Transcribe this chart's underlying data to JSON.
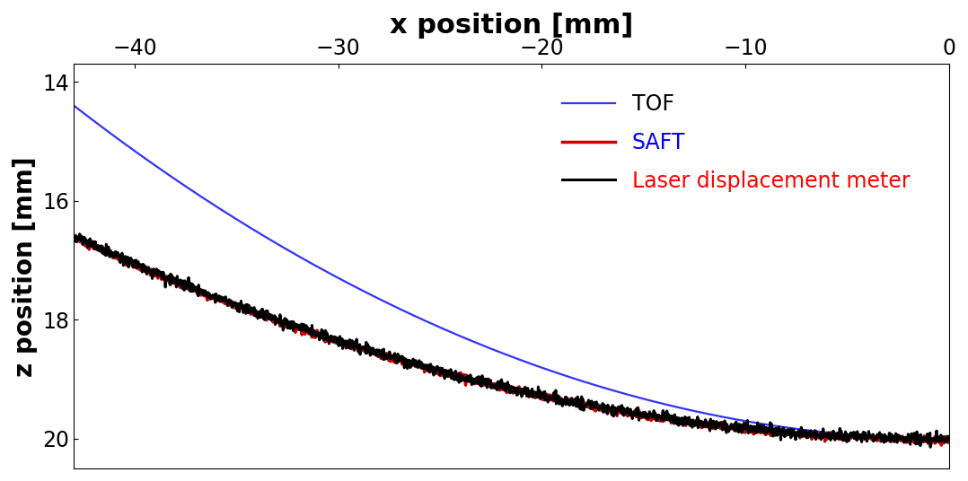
{
  "title": "x position [mm]",
  "ylabel": "z position [mm]",
  "xlim": [
    -43,
    0
  ],
  "ylim": [
    20.5,
    13.7
  ],
  "xticks": [
    -40,
    -30,
    -20,
    -10,
    0
  ],
  "yticks": [
    14,
    16,
    18,
    20
  ],
  "legend": [
    {
      "label": "Laser displacement meter",
      "color": "#000000",
      "lw": 2.2
    },
    {
      "label": "TOF",
      "color": "#3333ff",
      "lw": 1.6
    },
    {
      "label": "SAFT",
      "color": "#cc0000",
      "lw": 2.5
    }
  ],
  "background_color": "#ffffff",
  "title_fontsize": 22,
  "axis_label_fontsize": 20,
  "tick_fontsize": 17,
  "legend_fontsize": 17
}
